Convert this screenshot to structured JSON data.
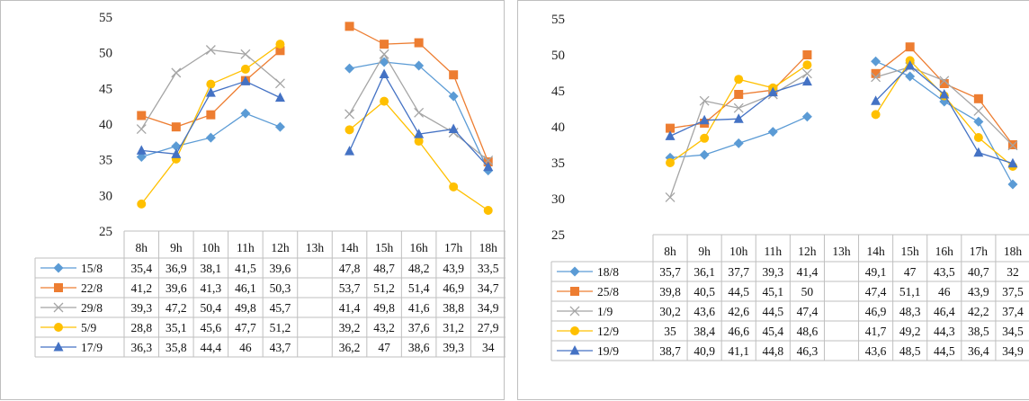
{
  "chart_data": [
    {
      "type": "line",
      "categories": [
        "8h",
        "9h",
        "10h",
        "11h",
        "12h",
        "13h",
        "14h",
        "15h",
        "16h",
        "17h",
        "18h"
      ],
      "ylim": [
        25,
        55
      ],
      "yticks": [
        25,
        30,
        35,
        40,
        45,
        50,
        55
      ],
      "grid": false,
      "legend": "data-table",
      "series": [
        {
          "name": "15/8",
          "color": "#5b9bd5",
          "marker": "diamond",
          "values": [
            35.4,
            36.9,
            38.1,
            41.5,
            39.6,
            null,
            47.8,
            48.7,
            48.2,
            43.9,
            33.5
          ],
          "labels": [
            "35,4",
            "36,9",
            "38,1",
            "41,5",
            "39,6",
            "",
            "47,8",
            "48,7",
            "48,2",
            "43,9",
            "33,5"
          ]
        },
        {
          "name": "22/8",
          "color": "#ed7d31",
          "marker": "square",
          "values": [
            41.2,
            39.6,
            41.3,
            46.1,
            50.3,
            null,
            53.7,
            51.2,
            51.4,
            46.9,
            34.7
          ],
          "labels": [
            "41,2",
            "39,6",
            "41,3",
            "46,1",
            "50,3",
            "",
            "53,7",
            "51,2",
            "51,4",
            "46,9",
            "34,7"
          ]
        },
        {
          "name": "29/8",
          "color": "#a5a5a5",
          "marker": "x",
          "values": [
            39.3,
            47.2,
            50.4,
            49.8,
            45.7,
            null,
            41.4,
            49.8,
            41.6,
            38.8,
            34.9
          ],
          "labels": [
            "39,3",
            "47,2",
            "50,4",
            "49,8",
            "45,7",
            "",
            "41,4",
            "49,8",
            "41,6",
            "38,8",
            "34,9"
          ]
        },
        {
          "name": "5/9",
          "color": "#ffc000",
          "marker": "circle",
          "values": [
            28.8,
            35.1,
            45.6,
            47.7,
            51.2,
            null,
            39.2,
            43.2,
            37.6,
            31.2,
            27.9
          ],
          "labels": [
            "28,8",
            "35,1",
            "45,6",
            "47,7",
            "51,2",
            "",
            "39,2",
            "43,2",
            "37,6",
            "31,2",
            "27,9"
          ]
        },
        {
          "name": "17/9",
          "color": "#4472c4",
          "marker": "triangle",
          "values": [
            36.3,
            35.8,
            44.4,
            46,
            43.7,
            null,
            36.2,
            47,
            38.6,
            39.3,
            34
          ],
          "labels": [
            "36,3",
            "35,8",
            "44,4",
            "46",
            "43,7",
            "",
            "36,2",
            "47",
            "38,6",
            "39,3",
            "34"
          ]
        }
      ]
    },
    {
      "type": "line",
      "categories": [
        "8h",
        "9h",
        "10h",
        "11h",
        "12h",
        "13h",
        "14h",
        "15h",
        "16h",
        "17h",
        "18h"
      ],
      "ylim": [
        25,
        55
      ],
      "yticks": [
        25,
        30,
        35,
        40,
        45,
        50,
        55
      ],
      "grid": false,
      "legend": "data-table",
      "series": [
        {
          "name": "18/8",
          "color": "#5b9bd5",
          "marker": "diamond",
          "values": [
            35.7,
            36.1,
            37.7,
            39.3,
            41.4,
            null,
            49.1,
            47,
            43.5,
            40.7,
            32
          ],
          "labels": [
            "35,7",
            "36,1",
            "37,7",
            "39,3",
            "41,4",
            "",
            "49,1",
            "47",
            "43,5",
            "40,7",
            "32"
          ]
        },
        {
          "name": "25/8",
          "color": "#ed7d31",
          "marker": "square",
          "values": [
            39.8,
            40.5,
            44.5,
            45.1,
            50,
            null,
            47.4,
            51.1,
            46,
            43.9,
            37.5
          ],
          "labels": [
            "39,8",
            "40,5",
            "44,5",
            "45,1",
            "50",
            "",
            "47,4",
            "51,1",
            "46",
            "43,9",
            "37,5"
          ]
        },
        {
          "name": "1/9",
          "color": "#a5a5a5",
          "marker": "x",
          "values": [
            30.2,
            43.6,
            42.6,
            44.5,
            47.4,
            null,
            46.9,
            48.3,
            46.4,
            42.2,
            37.4
          ],
          "labels": [
            "30,2",
            "43,6",
            "42,6",
            "44,5",
            "47,4",
            "",
            "46,9",
            "48,3",
            "46,4",
            "42,2",
            "37,4"
          ]
        },
        {
          "name": "12/9",
          "color": "#ffc000",
          "marker": "circle",
          "values": [
            35,
            38.4,
            46.6,
            45.4,
            48.6,
            null,
            41.7,
            49.2,
            44.3,
            38.5,
            34.5
          ],
          "labels": [
            "35",
            "38,4",
            "46,6",
            "45,4",
            "48,6",
            "",
            "41,7",
            "49,2",
            "44,3",
            "38,5",
            "34,5"
          ]
        },
        {
          "name": "19/9",
          "color": "#4472c4",
          "marker": "triangle",
          "values": [
            38.7,
            40.9,
            41.1,
            44.8,
            46.3,
            null,
            43.6,
            48.5,
            44.5,
            36.4,
            34.9
          ],
          "labels": [
            "38,7",
            "40,9",
            "41,1",
            "44,8",
            "46,3",
            "",
            "43,6",
            "48,5",
            "44,5",
            "36,4",
            "34,9"
          ]
        }
      ]
    }
  ]
}
